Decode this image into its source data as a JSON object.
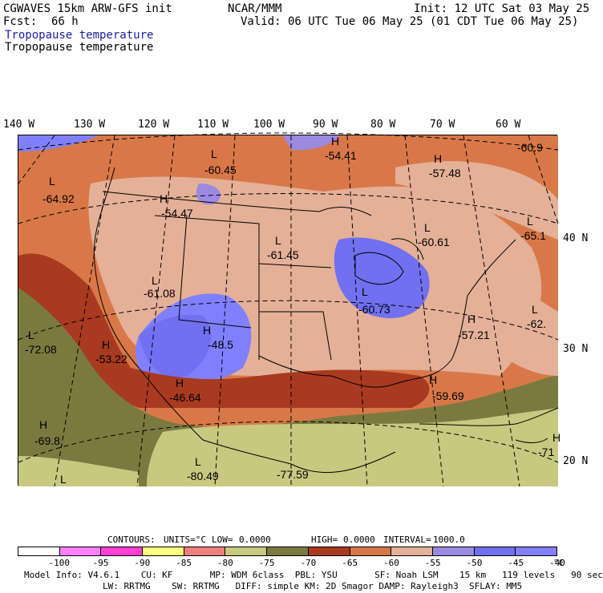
{
  "header": {
    "model": "CGWAVES 15km ARW-GFS init",
    "org": "NCAR/MMM",
    "init": "Init: 12 UTC Sat 03 May 25",
    "fcst_label": "Fcst:",
    "fcst_value": "66 h",
    "valid": "Valid: 06 UTC Tue 06 May 25 (01 CDT Tue 06 May 25)",
    "field_blue": "Tropopause temperature",
    "field_black": "Tropopause temperature",
    "blue_color": "#1a1aa0"
  },
  "longitudes": [
    "140 W",
    "130 W",
    "120 W",
    "110 W",
    "100 W",
    "90 W",
    "80 W",
    "70 W",
    "60 W"
  ],
  "latitudes": [
    "40 N",
    "30 N",
    "20 N"
  ],
  "map_labels": [
    {
      "letter": "L",
      "value": "-60.45"
    },
    {
      "letter": "H",
      "value": "-54.41"
    },
    {
      "letter": "H",
      "value": "-57.48"
    },
    {
      "letter": "",
      "value": "-60.9"
    },
    {
      "letter": "L",
      "value": "-64.92"
    },
    {
      "letter": "H",
      "value": "-54.47"
    },
    {
      "letter": "L",
      "value": "-61.45"
    },
    {
      "letter": "L",
      "value": "-60.61"
    },
    {
      "letter": "L",
      "value": "-65.1"
    },
    {
      "letter": "L",
      "value": "-61.08"
    },
    {
      "letter": "L",
      "value": "-60.73"
    },
    {
      "letter": "H",
      "value": "-48.5"
    },
    {
      "letter": "H",
      "value": "-57.21"
    },
    {
      "letter": "L",
      "value": "-62."
    },
    {
      "letter": "L",
      "value": "-72.08"
    },
    {
      "letter": "H",
      "value": "-53.22"
    },
    {
      "letter": "H",
      "value": "-46.64"
    },
    {
      "letter": "H",
      "value": "-59.69"
    },
    {
      "letter": "H",
      "value": "-69.8"
    },
    {
      "letter": "H",
      "value": "-71"
    },
    {
      "letter": "L",
      "value": "-80.49"
    },
    {
      "letter": "",
      "value": "-77.59"
    },
    {
      "letter": "L",
      "value": ""
    }
  ],
  "contours_line": {
    "label": "CONTOURS:",
    "units": "UNITS=°C",
    "low": "LOW=",
    "low_val": "0.0000",
    "high": "HIGH=",
    "high_val": "0.0000",
    "interval": "INTERVAL=",
    "interval_val": "1000.0"
  },
  "colorbar": {
    "colors": [
      "#ffffff",
      "#ff80ff",
      "#ff40d0",
      "#ffff80",
      "#f08080",
      "#c8c880",
      "#7a7a40",
      "#a83a20",
      "#d87848",
      "#e4b098",
      "#9a8ae0",
      "#7070f0",
      "#8080ff"
    ],
    "ticks": [
      "-100",
      "-95",
      "-90",
      "-85",
      "-80",
      "-75",
      "-70",
      "-65",
      "-60",
      "-55",
      "-50",
      "-45",
      "-40"
    ],
    "unit": "°C"
  },
  "footer": {
    "line1": "Model Info: V4.6.1    CU: KF       MP: WDM 6class  PBL: YSU       SF: Noah LSM    15 km   119 levels   90 sec",
    "line2": "LW: RRTMG    SW: RRTMG   DIFF: simple KM: 2D Smagor DAMP: Rayleigh3  SFLAY: MM5"
  }
}
